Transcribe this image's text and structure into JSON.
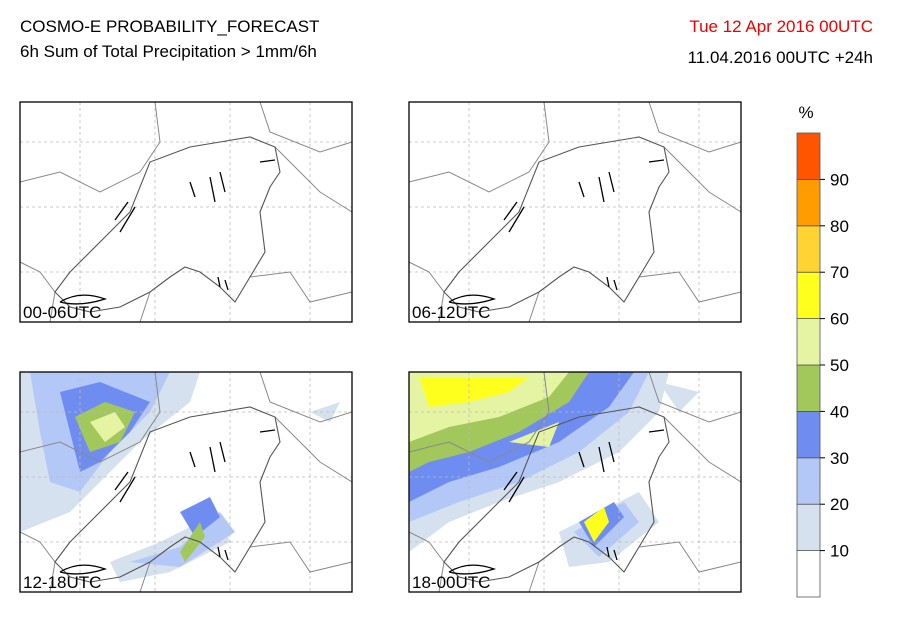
{
  "header": {
    "title": "COSMO-E PROBABILITY_FORECAST",
    "subtitle": "6h Sum of Total Precipitation > 1mm/6h",
    "valid": "Tue 12 Apr 2016 00UTC",
    "run": "11.04.2016 00UTC +24h"
  },
  "panels": [
    {
      "label": "00-06UTC"
    },
    {
      "label": "06-12UTC"
    },
    {
      "label": "12-18UTC"
    },
    {
      "label": "18-00UTC"
    }
  ],
  "colorbar": {
    "unit": "%",
    "range": [
      0,
      100
    ],
    "ticks": [
      10,
      20,
      30,
      40,
      50,
      60,
      70,
      80,
      90
    ],
    "colors": [
      "#ffffff",
      "#d5e1ee",
      "#b3c8f7",
      "#6f8df0",
      "#a2c85c",
      "#e5f4a3",
      "#ffff1e",
      "#ffd331",
      "#ff9c00",
      "#ff5500"
    ]
  }
}
